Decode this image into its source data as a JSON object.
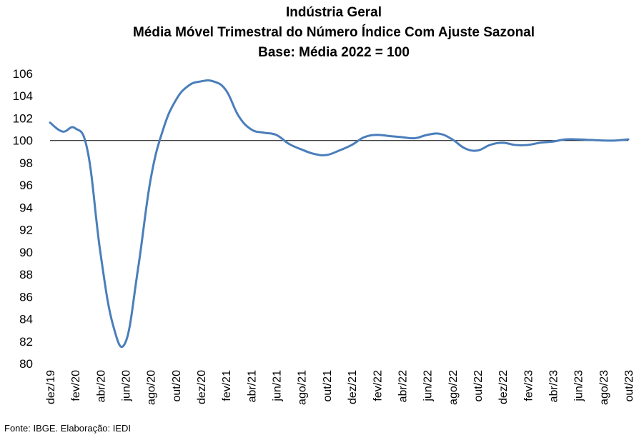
{
  "chart_data": {
    "type": "line",
    "title": [
      "Indústria Geral",
      "Média Móvel Trimestral do Número Índice Com Ajuste Sazonal",
      "Base: Média 2022 = 100"
    ],
    "xlabel": "",
    "ylabel": "",
    "ylim": [
      80,
      106
    ],
    "yticks": [
      "80",
      "82",
      "84",
      "86",
      "88",
      "90",
      "92",
      "94",
      "96",
      "98",
      "100",
      "102",
      "104",
      "106"
    ],
    "x_tick_labels": [
      "dez/19",
      "fev/20",
      "abr/20",
      "jun/20",
      "ago/20",
      "out/20",
      "dez/20",
      "fev/21",
      "abr/21",
      "jun/21",
      "ago/21",
      "out/21",
      "dez/21",
      "fev/22",
      "abr/22",
      "jun/22",
      "ago/22",
      "out/22",
      "dez/22",
      "fev/23",
      "abr/23",
      "jun/23",
      "ago/23",
      "out/23"
    ],
    "reference_line": 100,
    "grid": false,
    "legend": "none",
    "line_color": "#4a7ebb",
    "x": [
      "dez/19",
      "jan/20",
      "fev/20",
      "mar/20",
      "abr/20",
      "mai/20",
      "jun/20",
      "jul/20",
      "ago/20",
      "set/20",
      "out/20",
      "nov/20",
      "dez/20",
      "jan/21",
      "fev/21",
      "mar/21",
      "abr/21",
      "mai/21",
      "jun/21",
      "jul/21",
      "ago/21",
      "set/21",
      "out/21",
      "nov/21",
      "dez/21",
      "jan/22",
      "fev/22",
      "mar/22",
      "abr/22",
      "mai/22",
      "jun/22",
      "jul/22",
      "ago/22",
      "set/22",
      "out/22",
      "nov/22",
      "dez/22",
      "jan/23",
      "fev/23",
      "mar/23",
      "abr/23",
      "mai/23",
      "jun/23",
      "jul/23",
      "ago/23",
      "set/23",
      "out/23"
    ],
    "series": [
      {
        "values": [
          101.6,
          100.8,
          101.1,
          99.0,
          90.0,
          83.5,
          81.9,
          88.5,
          96.5,
          101.0,
          103.6,
          104.9,
          105.3,
          105.3,
          104.5,
          102.2,
          101.0,
          100.7,
          100.5,
          99.7,
          99.2,
          98.8,
          98.7,
          99.1,
          99.6,
          100.3,
          100.5,
          100.4,
          100.3,
          100.2,
          100.5,
          100.6,
          100.1,
          99.3,
          99.1,
          99.6,
          99.8,
          99.6,
          99.6,
          99.8,
          99.9,
          100.1,
          100.1,
          100.05,
          100.0,
          100.0,
          100.1
        ]
      }
    ]
  },
  "source": "Fonte: IBGE. Elaboração: IEDI"
}
